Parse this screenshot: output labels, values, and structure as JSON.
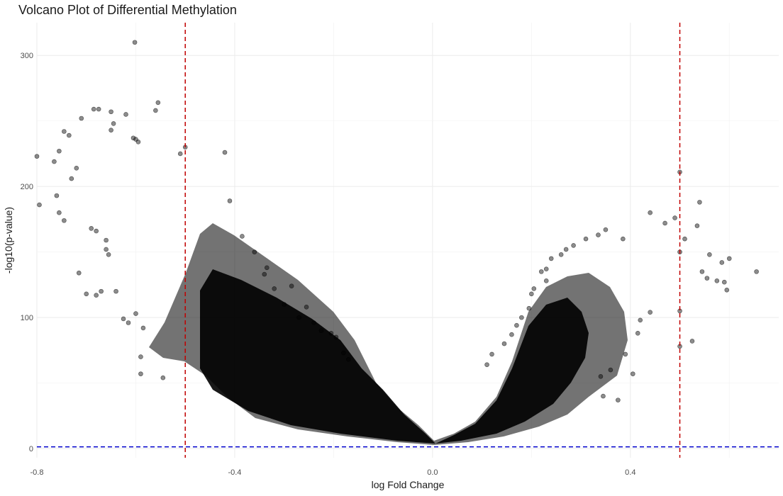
{
  "chart_data": {
    "type": "scatter",
    "title": "Volcano Plot of Differential Methylation",
    "xlabel": "log Fold Change",
    "ylabel": "-log10(p-value)",
    "xlim": [
      -0.8,
      0.7
    ],
    "ylim": [
      -7,
      325
    ],
    "x_ticks": [
      -0.8,
      -0.4,
      0.0,
      0.4
    ],
    "x_tick_labels": [
      "-0.8",
      "-0.4",
      "0.0",
      "0.4"
    ],
    "y_ticks": [
      0,
      100,
      200,
      300
    ],
    "y_tick_labels": [
      "0",
      "100",
      "200",
      "300"
    ],
    "grid": true,
    "legend": "none",
    "point_color": "#000000",
    "point_opacity": 0.45,
    "threshold_lines": [
      {
        "axis": "x",
        "value": -0.5,
        "color": "#c00000",
        "style": "dashed"
      },
      {
        "axis": "x",
        "value": 0.5,
        "color": "#c00000",
        "style": "dashed"
      },
      {
        "axis": "y",
        "value": 1.3,
        "color": "#0000cc",
        "style": "dashed"
      }
    ],
    "points": [
      [
        -0.602,
        310
      ],
      [
        -0.555,
        264
      ],
      [
        -0.685,
        259
      ],
      [
        -0.675,
        259
      ],
      [
        -0.65,
        257
      ],
      [
        -0.56,
        258
      ],
      [
        -0.62,
        255
      ],
      [
        -0.71,
        252
      ],
      [
        -0.645,
        248
      ],
      [
        -0.745,
        242
      ],
      [
        -0.735,
        239
      ],
      [
        -0.65,
        243
      ],
      [
        -0.605,
        237
      ],
      [
        -0.6,
        236
      ],
      [
        -0.595,
        234
      ],
      [
        -0.5,
        230
      ],
      [
        -0.51,
        225
      ],
      [
        -0.42,
        226
      ],
      [
        -0.8,
        223
      ],
      [
        -0.755,
        227
      ],
      [
        -0.765,
        219
      ],
      [
        -0.72,
        214
      ],
      [
        -0.73,
        206
      ],
      [
        -0.76,
        193
      ],
      [
        -0.795,
        186
      ],
      [
        -0.755,
        180
      ],
      [
        -0.745,
        174
      ],
      [
        -0.69,
        168
      ],
      [
        -0.68,
        166
      ],
      [
        -0.66,
        159
      ],
      [
        -0.66,
        152
      ],
      [
        -0.655,
        148
      ],
      [
        -0.715,
        134
      ],
      [
        -0.7,
        118
      ],
      [
        -0.68,
        117
      ],
      [
        -0.67,
        120
      ],
      [
        -0.64,
        120
      ],
      [
        -0.625,
        99
      ],
      [
        -0.615,
        96
      ],
      [
        -0.6,
        103
      ],
      [
        -0.585,
        92
      ],
      [
        -0.59,
        70
      ],
      [
        -0.59,
        57
      ],
      [
        -0.545,
        54
      ],
      [
        -0.41,
        189
      ],
      [
        -0.385,
        162
      ],
      [
        -0.36,
        150
      ],
      [
        -0.34,
        133
      ],
      [
        -0.32,
        122
      ],
      [
        -0.335,
        138
      ],
      [
        -0.3,
        110
      ],
      [
        -0.285,
        124
      ],
      [
        -0.27,
        100
      ],
      [
        -0.255,
        108
      ],
      [
        -0.24,
        96
      ],
      [
        -0.225,
        90
      ],
      [
        -0.205,
        88
      ],
      [
        -0.195,
        85
      ],
      [
        -0.18,
        73
      ],
      [
        -0.17,
        68
      ],
      [
        0.5,
        211
      ],
      [
        0.5,
        150
      ],
      [
        0.5,
        105
      ],
      [
        0.5,
        78
      ],
      [
        0.44,
        180
      ],
      [
        0.49,
        176
      ],
      [
        0.47,
        172
      ],
      [
        0.54,
        188
      ],
      [
        0.535,
        170
      ],
      [
        0.51,
        160
      ],
      [
        0.6,
        145
      ],
      [
        0.585,
        142
      ],
      [
        0.56,
        148
      ],
      [
        0.545,
        135
      ],
      [
        0.555,
        130
      ],
      [
        0.575,
        128
      ],
      [
        0.59,
        127
      ],
      [
        0.595,
        121
      ],
      [
        0.655,
        135
      ],
      [
        0.525,
        82
      ],
      [
        0.44,
        104
      ],
      [
        0.42,
        98
      ],
      [
        0.415,
        88
      ],
      [
        0.39,
        72
      ],
      [
        0.36,
        60
      ],
      [
        0.405,
        57
      ],
      [
        0.375,
        37
      ],
      [
        0.345,
        40
      ],
      [
        0.34,
        55
      ],
      [
        0.385,
        160
      ],
      [
        0.35,
        167
      ],
      [
        0.335,
        163
      ],
      [
        0.31,
        160
      ],
      [
        0.285,
        155
      ],
      [
        0.27,
        152
      ],
      [
        0.26,
        148
      ],
      [
        0.24,
        145
      ],
      [
        0.23,
        137
      ],
      [
        0.23,
        128
      ],
      [
        0.22,
        135
      ],
      [
        0.205,
        122
      ],
      [
        0.2,
        118
      ],
      [
        0.195,
        107
      ],
      [
        0.18,
        100
      ],
      [
        0.17,
        94
      ],
      [
        0.16,
        87
      ],
      [
        0.145,
        80
      ],
      [
        0.12,
        72
      ],
      [
        0.11,
        64
      ]
    ]
  }
}
